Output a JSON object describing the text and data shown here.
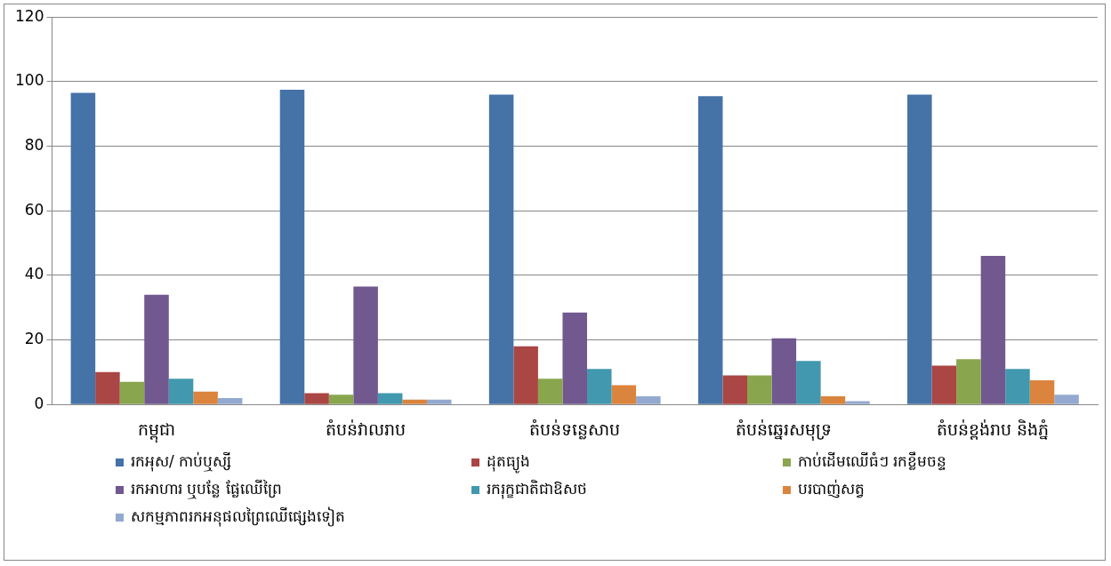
{
  "chart_data": {
    "type": "bar",
    "categories": [
      "កម្ពុជា",
      "តំបន់វាលរាប",
      "តំបន់ទន្លេសាប",
      "តំបន់ឆ្នេរសមុទ្រ",
      "តំបន់ខ្ពង់រាប និងភ្នំ"
    ],
    "series": [
      {
        "name": "រកអុស/ កាប់ឬស្សី",
        "color": "#4572a7",
        "values": [
          96.5,
          97.5,
          96,
          95.5,
          96
        ]
      },
      {
        "name": "ដុតធ្យូង",
        "color": "#aa4643",
        "values": [
          10,
          3.5,
          18,
          9,
          12
        ]
      },
      {
        "name": "កាប់ដើមឈើធំៗ រកខ្លឹមចន្ទ",
        "color": "#89a54e",
        "values": [
          7,
          3,
          8,
          9,
          14
        ]
      },
      {
        "name": "រកអាហារ ឬបន្លែ ផ្លែឈើព្រៃ",
        "color": "#71588f",
        "values": [
          34,
          36.5,
          28.5,
          20.5,
          46
        ]
      },
      {
        "name": "រករុក្ខជាតិជាឱសថ",
        "color": "#4198af",
        "values": [
          8,
          3.5,
          11,
          13.5,
          11
        ]
      },
      {
        "name": "បរបាញ់សត្វ",
        "color": "#db843d",
        "values": [
          4,
          1.5,
          6,
          2.5,
          7.5
        ]
      },
      {
        "name": "សកម្មភាពរកអនុផលព្រៃឈើផ្សេងទៀត",
        "color": "#93a9cf",
        "values": [
          2,
          1.5,
          2.5,
          1,
          3
        ]
      }
    ],
    "ylim": [
      0,
      120
    ],
    "yticks": [
      0,
      20,
      40,
      60,
      80,
      100,
      120
    ],
    "grid": "y",
    "legend": "bottom"
  }
}
